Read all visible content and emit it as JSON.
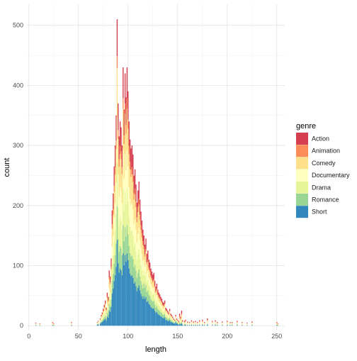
{
  "chart_data": {
    "type": "bar",
    "stacked": true,
    "title": "",
    "xlabel": "length",
    "ylabel": "count",
    "xlim": [
      -2,
      258
    ],
    "ylim": [
      -8,
      535
    ],
    "x_ticks": [
      0,
      50,
      100,
      150,
      200,
      250
    ],
    "y_ticks": [
      0,
      100,
      200,
      300,
      400,
      500
    ],
    "grid": true,
    "legend": {
      "title": "genre",
      "position": "right"
    },
    "series": [
      {
        "name": "Action",
        "color": "#D53E4F"
      },
      {
        "name": "Animation",
        "color": "#FC8D59"
      },
      {
        "name": "Comedy",
        "color": "#FEE08B"
      },
      {
        "name": "Documentary",
        "color": "#FFFFBF"
      },
      {
        "name": "Drama",
        "color": "#E6F598"
      },
      {
        "name": "Romance",
        "color": "#99D594"
      },
      {
        "name": "Short",
        "color": "#3288BD"
      }
    ],
    "totals": [
      [
        7,
        5
      ],
      [
        11,
        4
      ],
      [
        24,
        6
      ],
      [
        25,
        4
      ],
      [
        43,
        6
      ],
      [
        69,
        6
      ],
      [
        70,
        8
      ],
      [
        72,
        12
      ],
      [
        73,
        18
      ],
      [
        74,
        22
      ],
      [
        75,
        28
      ],
      [
        76,
        35
      ],
      [
        77,
        42
      ],
      [
        78,
        30
      ],
      [
        79,
        55
      ],
      [
        80,
        48
      ],
      [
        81,
        92
      ],
      [
        82,
        82
      ],
      [
        83,
        112
      ],
      [
        84,
        192
      ],
      [
        85,
        220
      ],
      [
        86,
        265
      ],
      [
        87,
        300
      ],
      [
        88,
        350
      ],
      [
        89,
        510
      ],
      [
        90,
        370
      ],
      [
        91,
        315
      ],
      [
        92,
        340
      ],
      [
        93,
        330
      ],
      [
        94,
        300
      ],
      [
        95,
        430
      ],
      [
        96,
        360
      ],
      [
        97,
        420
      ],
      [
        98,
        380
      ],
      [
        99,
        430
      ],
      [
        100,
        390
      ],
      [
        101,
        340
      ],
      [
        102,
        310
      ],
      [
        103,
        295
      ],
      [
        104,
        300
      ],
      [
        105,
        285
      ],
      [
        106,
        250
      ],
      [
        107,
        260
      ],
      [
        108,
        235
      ],
      [
        109,
        205
      ],
      [
        110,
        225
      ],
      [
        111,
        240
      ],
      [
        112,
        210
      ],
      [
        113,
        190
      ],
      [
        114,
        175
      ],
      [
        115,
        160
      ],
      [
        116,
        150
      ],
      [
        117,
        135
      ],
      [
        118,
        145
      ],
      [
        119,
        120
      ],
      [
        120,
        125
      ],
      [
        121,
        110
      ],
      [
        122,
        105
      ],
      [
        123,
        95
      ],
      [
        124,
        90
      ],
      [
        125,
        85
      ],
      [
        126,
        88
      ],
      [
        127,
        75
      ],
      [
        128,
        65
      ],
      [
        129,
        70
      ],
      [
        130,
        60
      ],
      [
        131,
        55
      ],
      [
        132,
        52
      ],
      [
        133,
        48
      ],
      [
        134,
        45
      ],
      [
        135,
        40
      ],
      [
        136,
        38
      ],
      [
        137,
        42
      ],
      [
        138,
        30
      ],
      [
        139,
        28
      ],
      [
        140,
        25
      ],
      [
        141,
        22
      ],
      [
        142,
        28
      ],
      [
        143,
        20
      ],
      [
        144,
        18
      ],
      [
        145,
        15
      ],
      [
        146,
        12
      ],
      [
        147,
        10
      ],
      [
        148,
        18
      ],
      [
        149,
        12
      ],
      [
        150,
        10
      ],
      [
        151,
        8
      ],
      [
        152,
        20
      ],
      [
        153,
        15
      ],
      [
        154,
        25
      ],
      [
        155,
        9
      ],
      [
        157,
        8
      ],
      [
        158,
        10
      ],
      [
        160,
        7
      ],
      [
        162,
        6
      ],
      [
        164,
        9
      ],
      [
        166,
        7
      ],
      [
        168,
        8
      ],
      [
        170,
        6
      ],
      [
        172,
        9
      ],
      [
        175,
        10
      ],
      [
        177,
        6
      ],
      [
        180,
        12
      ],
      [
        185,
        8
      ],
      [
        188,
        9
      ],
      [
        190,
        6
      ],
      [
        195,
        7
      ],
      [
        200,
        8
      ],
      [
        203,
        6
      ],
      [
        205,
        6
      ],
      [
        210,
        8
      ],
      [
        215,
        6
      ],
      [
        220,
        5
      ],
      [
        225,
        7
      ],
      [
        250,
        6
      ],
      [
        251,
        4
      ]
    ]
  }
}
